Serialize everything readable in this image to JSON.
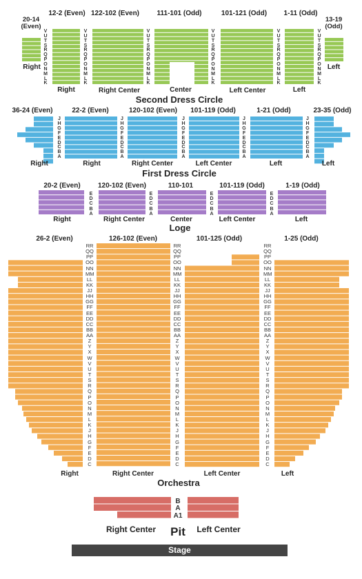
{
  "colors": {
    "second_dress_circle": "#97c855",
    "first_dress_circle": "#53b2df",
    "loge": "#a57cc8",
    "orchestra": "#f2ac52",
    "pit": "#d76d66",
    "stage": "#444444"
  },
  "sections": {
    "second_dress_circle": {
      "title": "Second Dress Circle",
      "headers": [
        "20-14 (Even)",
        "12-2 (Even)",
        "122-102 (Even)",
        "111-101 (Odd)",
        "101-121 (Odd)",
        "1-11 (Odd)",
        "13-19 (Odd)"
      ],
      "labels": [
        "Right",
        "Right",
        "Right Center",
        "Center",
        "Left Center",
        "Left",
        "Left"
      ],
      "rows": [
        "V",
        "U",
        "T",
        "S",
        "R",
        "Q",
        "P",
        "O",
        "N",
        "M",
        "L",
        "K"
      ]
    },
    "first_dress_circle": {
      "title": "First Dress Circle",
      "headers": [
        "36-24 (Even)",
        "22-2 (Even)",
        "120-102 (Even)",
        "101-119 (Odd)",
        "1-21 (Odd)",
        "23-35 (Odd)"
      ],
      "labels": [
        "Right",
        "Right",
        "Right Center",
        "Left Center",
        "Left",
        "Left"
      ],
      "rows": [
        "J",
        "H",
        "G",
        "F",
        "E",
        "D",
        "C",
        "B",
        "A"
      ]
    },
    "loge": {
      "title": "Loge",
      "headers": [
        "20-2 (Even)",
        "120-102 (Even)",
        "110-101",
        "101-119 (Odd)",
        "1-19 (Odd)"
      ],
      "labels": [
        "Right",
        "Right Center",
        "Center",
        "Left Center",
        "Left"
      ],
      "rows": [
        "E",
        "D",
        "C",
        "B",
        "A"
      ]
    },
    "orchestra": {
      "title": "Orchestra",
      "headers": [
        "26-2 (Even)",
        "126-102 (Even)",
        "101-125 (Odd)",
        "1-25 (Odd)"
      ],
      "labels": [
        "Right",
        "Right Center",
        "Left Center",
        "Left"
      ],
      "rows": [
        "RR",
        "QQ",
        "PP",
        "OO",
        "NN",
        "MM",
        "LL",
        "KK",
        "JJ",
        "HH",
        "GG",
        "FF",
        "EE",
        "DD",
        "CC",
        "BB",
        "AA",
        "Z",
        "Y",
        "X",
        "W",
        "V",
        "U",
        "T",
        "S",
        "R",
        "Q",
        "P",
        "O",
        "N",
        "M",
        "L",
        "K",
        "J",
        "H",
        "G",
        "F",
        "E",
        "D",
        "C"
      ]
    },
    "pit": {
      "title": "Pit",
      "labels": [
        "Right Center",
        "Left Center"
      ],
      "rows": [
        "B",
        "A",
        "A1"
      ]
    },
    "stage": {
      "label": "Stage"
    }
  }
}
